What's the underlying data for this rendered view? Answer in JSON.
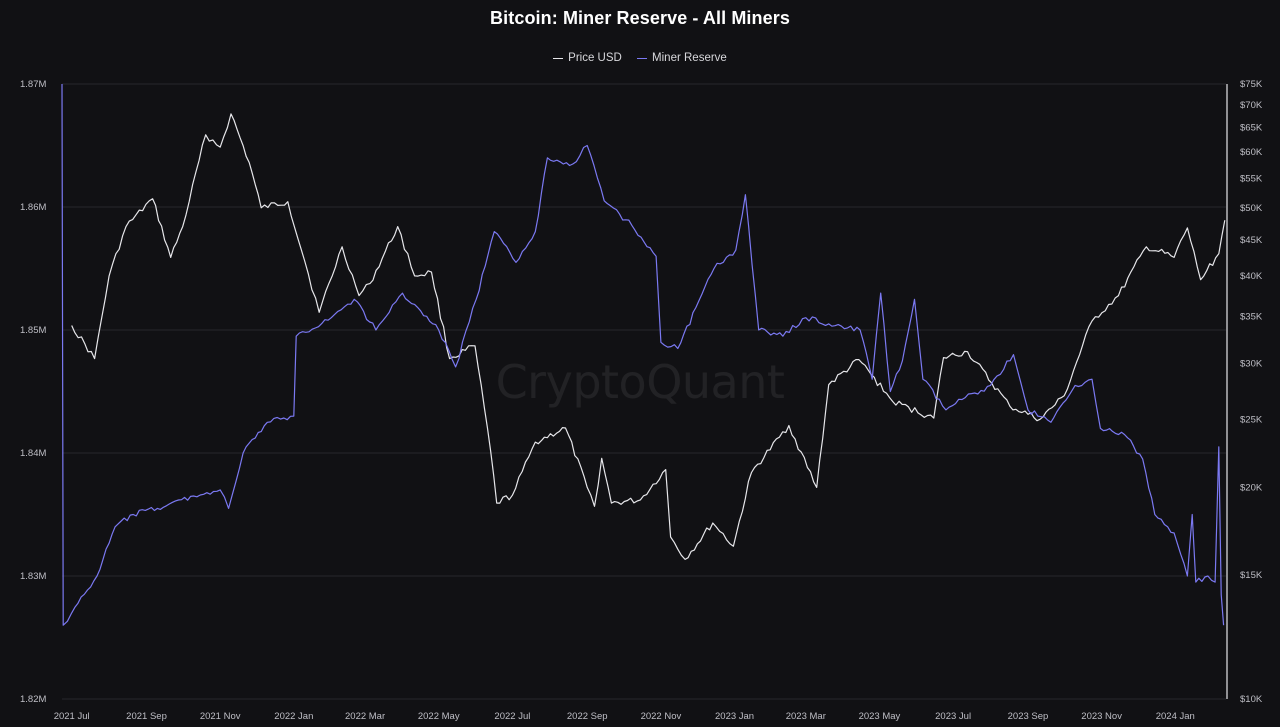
{
  "chart_data": {
    "type": "line",
    "title": "Bitcoin: Miner Reserve - All Miners",
    "legend": {
      "placement": "top-center",
      "entries": [
        "Price USD",
        "Miner Reserve"
      ]
    },
    "watermark": "CryptoQuant",
    "grid": true,
    "x": {
      "type": "date",
      "range": [
        "2021-06-23",
        "2024-02-12"
      ],
      "ticks": [
        {
          "date": "2021-07-01",
          "label": "2021 Jul"
        },
        {
          "date": "2021-09-01",
          "label": "2021 Sep"
        },
        {
          "date": "2021-11-01",
          "label": "2021 Nov"
        },
        {
          "date": "2022-01-01",
          "label": "2022 Jan"
        },
        {
          "date": "2022-03-01",
          "label": "2022 Mar"
        },
        {
          "date": "2022-05-01",
          "label": "2022 May"
        },
        {
          "date": "2022-07-01",
          "label": "2022 Jul"
        },
        {
          "date": "2022-09-01",
          "label": "2022 Sep"
        },
        {
          "date": "2022-11-01",
          "label": "2022 Nov"
        },
        {
          "date": "2023-01-01",
          "label": "2023 Jan"
        },
        {
          "date": "2023-03-01",
          "label": "2023 Mar"
        },
        {
          "date": "2023-05-01",
          "label": "2023 May"
        },
        {
          "date": "2023-07-01",
          "label": "2023 Jul"
        },
        {
          "date": "2023-09-01",
          "label": "2023 Sep"
        },
        {
          "date": "2023-11-01",
          "label": "2023 Nov"
        },
        {
          "date": "2024-01-01",
          "label": "2024 Jan"
        }
      ]
    },
    "y_left": {
      "label": "",
      "scale": "linear",
      "range": [
        1820000,
        1870000
      ],
      "ticks": [
        {
          "value": 1820000,
          "label": "1.82M"
        },
        {
          "value": 1830000,
          "label": "1.83M"
        },
        {
          "value": 1840000,
          "label": "1.84M"
        },
        {
          "value": 1850000,
          "label": "1.85M"
        },
        {
          "value": 1860000,
          "label": "1.86M"
        },
        {
          "value": 1870000,
          "label": "1.87M"
        }
      ]
    },
    "y_right": {
      "label": "",
      "scale": "log",
      "range": [
        10000,
        75000
      ],
      "ticks": [
        {
          "value": 10000,
          "label": "$10K"
        },
        {
          "value": 15000,
          "label": "$15K"
        },
        {
          "value": 20000,
          "label": "$20K"
        },
        {
          "value": 25000,
          "label": "$25K"
        },
        {
          "value": 30000,
          "label": "$30K"
        },
        {
          "value": 35000,
          "label": "$35K"
        },
        {
          "value": 40000,
          "label": "$40K"
        },
        {
          "value": 45000,
          "label": "$45K"
        },
        {
          "value": 50000,
          "label": "$50K"
        },
        {
          "value": 55000,
          "label": "$55K"
        },
        {
          "value": 60000,
          "label": "$60K"
        },
        {
          "value": 65000,
          "label": "$65K"
        },
        {
          "value": 70000,
          "label": "$70K"
        },
        {
          "value": 75000,
          "label": "$75K"
        }
      ]
    },
    "series": [
      {
        "name": "Price USD",
        "axis": "right",
        "color": "#e6e6ea",
        "points": [
          [
            "2021-07-01",
            34000
          ],
          [
            "2021-07-20",
            30500
          ],
          [
            "2021-08-01",
            40000
          ],
          [
            "2021-08-15",
            47000
          ],
          [
            "2021-09-06",
            51500
          ],
          [
            "2021-09-21",
            42500
          ],
          [
            "2021-10-01",
            47000
          ],
          [
            "2021-10-20",
            63500
          ],
          [
            "2021-11-01",
            61000
          ],
          [
            "2021-11-10",
            68000
          ],
          [
            "2021-11-25",
            58000
          ],
          [
            "2021-12-05",
            50000
          ],
          [
            "2021-12-27",
            51000
          ],
          [
            "2022-01-10",
            42000
          ],
          [
            "2022-01-22",
            35500
          ],
          [
            "2022-02-10",
            44000
          ],
          [
            "2022-02-24",
            37500
          ],
          [
            "2022-03-05",
            39000
          ],
          [
            "2022-03-28",
            47000
          ],
          [
            "2022-04-11",
            40000
          ],
          [
            "2022-04-25",
            40500
          ],
          [
            "2022-05-10",
            30500
          ],
          [
            "2022-05-31",
            31800
          ],
          [
            "2022-06-13",
            22500
          ],
          [
            "2022-06-18",
            19000
          ],
          [
            "2022-07-01",
            19500
          ],
          [
            "2022-07-20",
            23200
          ],
          [
            "2022-08-14",
            24300
          ],
          [
            "2022-09-01",
            20000
          ],
          [
            "2022-09-07",
            18800
          ],
          [
            "2022-09-13",
            22000
          ],
          [
            "2022-09-21",
            19000
          ],
          [
            "2022-10-15",
            19200
          ],
          [
            "2022-11-05",
            21200
          ],
          [
            "2022-11-09",
            17000
          ],
          [
            "2022-11-21",
            15800
          ],
          [
            "2022-12-14",
            17800
          ],
          [
            "2022-12-31",
            16500
          ],
          [
            "2023-01-15",
            21000
          ],
          [
            "2023-02-15",
            24500
          ],
          [
            "2023-03-10",
            20000
          ],
          [
            "2023-03-20",
            28000
          ],
          [
            "2023-04-14",
            30400
          ],
          [
            "2023-05-12",
            26500
          ],
          [
            "2023-06-15",
            25100
          ],
          [
            "2023-06-23",
            30600
          ],
          [
            "2023-07-13",
            31200
          ],
          [
            "2023-08-17",
            26100
          ],
          [
            "2023-09-11",
            25000
          ],
          [
            "2023-10-01",
            27000
          ],
          [
            "2023-10-24",
            34500
          ],
          [
            "2023-11-15",
            37500
          ],
          [
            "2023-12-08",
            44000
          ],
          [
            "2023-12-31",
            42500
          ],
          [
            "2024-01-11",
            46800
          ],
          [
            "2024-01-22",
            39500
          ],
          [
            "2024-02-06",
            43000
          ],
          [
            "2024-02-11",
            48000
          ]
        ]
      },
      {
        "name": "Miner Reserve",
        "axis": "left",
        "color": "#7b79f2",
        "points": [
          [
            "2021-06-23",
            1870000
          ],
          [
            "2021-06-24",
            1826000
          ],
          [
            "2021-07-01",
            1827000
          ],
          [
            "2021-07-22",
            1830000
          ],
          [
            "2021-08-06",
            1834000
          ],
          [
            "2021-08-21",
            1835000
          ],
          [
            "2021-09-10",
            1835500
          ],
          [
            "2021-10-10",
            1836500
          ],
          [
            "2021-11-01",
            1837000
          ],
          [
            "2021-11-08",
            1835500
          ],
          [
            "2021-11-20",
            1840000
          ],
          [
            "2021-12-10",
            1842500
          ],
          [
            "2022-01-01",
            1843000
          ],
          [
            "2022-01-03",
            1849500
          ],
          [
            "2022-02-01",
            1851000
          ],
          [
            "2022-02-20",
            1852500
          ],
          [
            "2022-03-10",
            1850000
          ],
          [
            "2022-04-01",
            1853000
          ],
          [
            "2022-05-01",
            1850000
          ],
          [
            "2022-05-15",
            1847000
          ],
          [
            "2022-06-01",
            1852500
          ],
          [
            "2022-06-16",
            1858000
          ],
          [
            "2022-07-04",
            1855500
          ],
          [
            "2022-07-20",
            1858000
          ],
          [
            "2022-07-30",
            1864000
          ],
          [
            "2022-08-20",
            1863500
          ],
          [
            "2022-09-01",
            1865000
          ],
          [
            "2022-09-15",
            1860500
          ],
          [
            "2022-10-08",
            1858500
          ],
          [
            "2022-10-28",
            1856000
          ],
          [
            "2022-11-01",
            1849000
          ],
          [
            "2022-11-15",
            1848500
          ],
          [
            "2022-12-15",
            1855000
          ],
          [
            "2023-01-02",
            1856500
          ],
          [
            "2023-01-10",
            1861000
          ],
          [
            "2023-01-21",
            1850000
          ],
          [
            "2023-02-10",
            1849500
          ],
          [
            "2023-03-01",
            1851000
          ],
          [
            "2023-03-20",
            1850500
          ],
          [
            "2023-04-15",
            1850000
          ],
          [
            "2023-04-25",
            1846000
          ],
          [
            "2023-05-02",
            1853000
          ],
          [
            "2023-05-10",
            1845000
          ],
          [
            "2023-05-20",
            1847500
          ],
          [
            "2023-05-30",
            1852500
          ],
          [
            "2023-06-06",
            1846000
          ],
          [
            "2023-06-25",
            1843500
          ],
          [
            "2023-07-11",
            1844500
          ],
          [
            "2023-08-01",
            1845500
          ],
          [
            "2023-08-20",
            1848000
          ],
          [
            "2023-09-01",
            1843500
          ],
          [
            "2023-09-20",
            1842500
          ],
          [
            "2023-10-10",
            1845500
          ],
          [
            "2023-10-24",
            1846000
          ],
          [
            "2023-10-31",
            1842000
          ],
          [
            "2023-11-20",
            1841500
          ],
          [
            "2023-12-05",
            1839500
          ],
          [
            "2023-12-15",
            1835000
          ],
          [
            "2023-12-31",
            1833500
          ],
          [
            "2024-01-11",
            1830000
          ],
          [
            "2024-01-15",
            1835000
          ],
          [
            "2024-01-18",
            1829500
          ],
          [
            "2024-01-28",
            1830000
          ],
          [
            "2024-02-03",
            1829500
          ],
          [
            "2024-02-06",
            1840500
          ],
          [
            "2024-02-08",
            1828500
          ],
          [
            "2024-02-10",
            1826000
          ]
        ]
      }
    ]
  }
}
